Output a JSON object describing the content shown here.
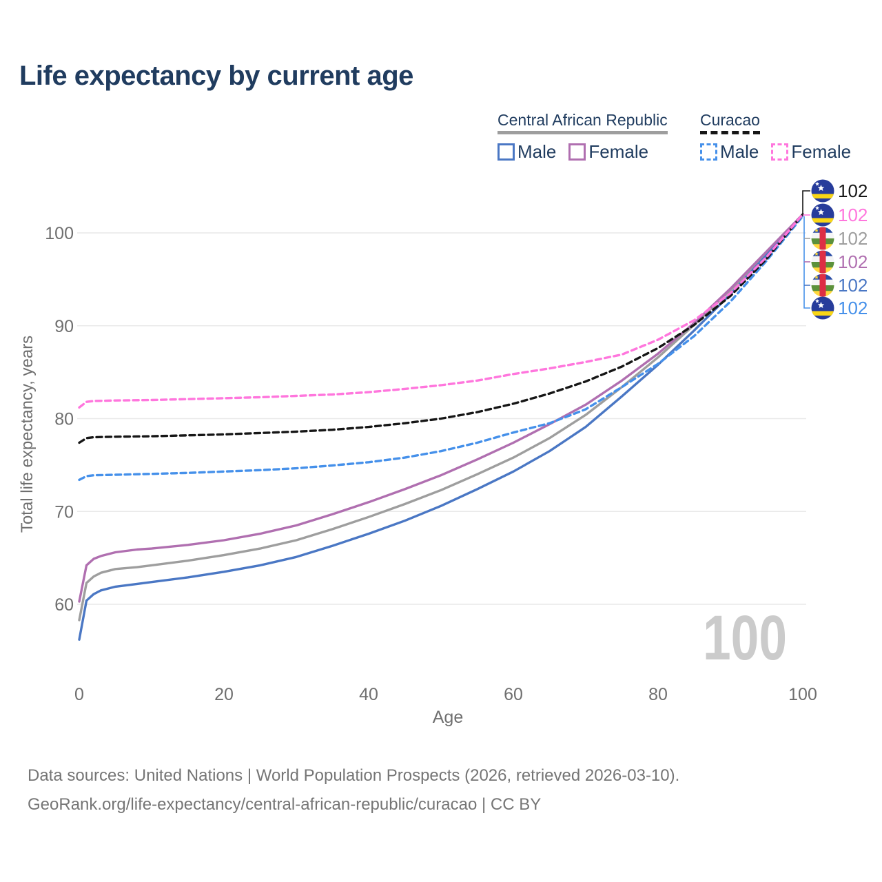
{
  "title": "Life expectancy by current age",
  "legend": {
    "groups": [
      {
        "name": "Central African Republic",
        "line_style": "solid",
        "line_color": "#9e9e9e",
        "items": [
          {
            "label": "Male",
            "color": "#4a77c4",
            "dashed": false
          },
          {
            "label": "Female",
            "color": "#b06fb0",
            "dashed": false
          }
        ]
      },
      {
        "name": "Curacao",
        "line_style": "dashed",
        "line_color": "#161616",
        "items": [
          {
            "label": "Male",
            "color": "#4590ea",
            "dashed": true
          },
          {
            "label": "Female",
            "color": "#ff76dd",
            "dashed": true
          }
        ]
      }
    ]
  },
  "chart_data": {
    "type": "line",
    "title": "Life expectancy by current age",
    "xlabel": "Age",
    "ylabel": "Total life expectancy, years",
    "x_axis": {
      "label": "Age",
      "ticks": [
        0,
        20,
        40,
        60,
        80,
        100
      ],
      "range": [
        0,
        100
      ]
    },
    "y_axis": {
      "label": "Total life expectancy, years",
      "ticks": [
        60,
        70,
        80,
        90,
        100
      ],
      "range": [
        56,
        103
      ]
    },
    "grid": "horizontal",
    "watermark": "100",
    "series": [
      {
        "id": "car-both",
        "name": "Central African Republic — Both sexes",
        "country": "Central African Republic",
        "sex": "Both",
        "color": "#9e9e9e",
        "dashed": false,
        "points": [
          [
            0,
            58.3
          ],
          [
            1,
            62.3
          ],
          [
            2,
            63.0
          ],
          [
            3,
            63.4
          ],
          [
            5,
            63.8
          ],
          [
            8,
            64.0
          ],
          [
            10,
            64.2
          ],
          [
            15,
            64.7
          ],
          [
            20,
            65.3
          ],
          [
            25,
            66.0
          ],
          [
            30,
            66.9
          ],
          [
            35,
            68.1
          ],
          [
            40,
            69.4
          ],
          [
            45,
            70.8
          ],
          [
            50,
            72.3
          ],
          [
            55,
            74.0
          ],
          [
            60,
            75.8
          ],
          [
            65,
            77.9
          ],
          [
            70,
            80.4
          ],
          [
            75,
            83.4
          ],
          [
            80,
            86.6
          ],
          [
            85,
            90.1
          ],
          [
            90,
            93.8
          ],
          [
            95,
            97.8
          ],
          [
            100,
            101.95
          ]
        ]
      },
      {
        "id": "car-male",
        "name": "Central African Republic — Male",
        "country": "Central African Republic",
        "sex": "Male",
        "color": "#4a77c4",
        "dashed": false,
        "points": [
          [
            0,
            56.2
          ],
          [
            1,
            60.4
          ],
          [
            2,
            61.1
          ],
          [
            3,
            61.5
          ],
          [
            5,
            61.9
          ],
          [
            8,
            62.2
          ],
          [
            10,
            62.4
          ],
          [
            15,
            62.9
          ],
          [
            20,
            63.5
          ],
          [
            25,
            64.2
          ],
          [
            30,
            65.1
          ],
          [
            35,
            66.3
          ],
          [
            40,
            67.6
          ],
          [
            45,
            69.0
          ],
          [
            50,
            70.6
          ],
          [
            55,
            72.4
          ],
          [
            60,
            74.3
          ],
          [
            65,
            76.5
          ],
          [
            70,
            79.1
          ],
          [
            75,
            82.4
          ],
          [
            80,
            85.8
          ],
          [
            85,
            89.5
          ],
          [
            90,
            93.4
          ],
          [
            95,
            97.6
          ],
          [
            100,
            101.9
          ]
        ]
      },
      {
        "id": "car-female",
        "name": "Central African Republic — Female",
        "country": "Central African Republic",
        "sex": "Female",
        "color": "#b06fb0",
        "dashed": false,
        "points": [
          [
            0,
            60.3
          ],
          [
            1,
            64.2
          ],
          [
            2,
            64.9
          ],
          [
            3,
            65.2
          ],
          [
            5,
            65.6
          ],
          [
            8,
            65.9
          ],
          [
            10,
            66.0
          ],
          [
            15,
            66.4
          ],
          [
            20,
            66.9
          ],
          [
            25,
            67.6
          ],
          [
            30,
            68.5
          ],
          [
            35,
            69.7
          ],
          [
            40,
            71.0
          ],
          [
            45,
            72.4
          ],
          [
            50,
            73.9
          ],
          [
            55,
            75.6
          ],
          [
            60,
            77.4
          ],
          [
            65,
            79.4
          ],
          [
            70,
            81.5
          ],
          [
            75,
            84.1
          ],
          [
            80,
            87.0
          ],
          [
            85,
            90.3
          ],
          [
            90,
            94.0
          ],
          [
            95,
            98.0
          ],
          [
            100,
            102
          ]
        ]
      },
      {
        "id": "cur-male",
        "name": "Curacao — Male",
        "country": "Curacao",
        "sex": "Male",
        "color": "#4590ea",
        "dashed": true,
        "points": [
          [
            0,
            73.4
          ],
          [
            1,
            73.8
          ],
          [
            2,
            73.9
          ],
          [
            5,
            73.95
          ],
          [
            10,
            74.05
          ],
          [
            15,
            74.15
          ],
          [
            20,
            74.3
          ],
          [
            25,
            74.45
          ],
          [
            30,
            74.65
          ],
          [
            35,
            74.95
          ],
          [
            40,
            75.3
          ],
          [
            45,
            75.8
          ],
          [
            50,
            76.5
          ],
          [
            55,
            77.4
          ],
          [
            60,
            78.5
          ],
          [
            65,
            79.5
          ],
          [
            70,
            81.0
          ],
          [
            75,
            83.4
          ],
          [
            80,
            85.9
          ],
          [
            85,
            88.9
          ],
          [
            90,
            92.6
          ],
          [
            95,
            97.0
          ],
          [
            100,
            101.8
          ]
        ]
      },
      {
        "id": "cur-both",
        "name": "Curacao — Both sexes",
        "country": "Curacao",
        "sex": "Both",
        "color": "#161616",
        "dashed": true,
        "points": [
          [
            0,
            77.4
          ],
          [
            1,
            77.9
          ],
          [
            2,
            78.0
          ],
          [
            5,
            78.05
          ],
          [
            10,
            78.1
          ],
          [
            15,
            78.2
          ],
          [
            20,
            78.3
          ],
          [
            25,
            78.45
          ],
          [
            30,
            78.6
          ],
          [
            35,
            78.8
          ],
          [
            40,
            79.1
          ],
          [
            45,
            79.5
          ],
          [
            50,
            80.0
          ],
          [
            55,
            80.7
          ],
          [
            60,
            81.6
          ],
          [
            65,
            82.7
          ],
          [
            70,
            84.0
          ],
          [
            75,
            85.6
          ],
          [
            80,
            87.6
          ],
          [
            85,
            90.1
          ],
          [
            90,
            93.2
          ],
          [
            95,
            97.2
          ],
          [
            100,
            102
          ]
        ]
      },
      {
        "id": "cur-female",
        "name": "Curacao — Female",
        "country": "Curacao",
        "sex": "Female",
        "color": "#ff76dd",
        "dashed": true,
        "points": [
          [
            0,
            81.2
          ],
          [
            1,
            81.8
          ],
          [
            2,
            81.9
          ],
          [
            5,
            81.95
          ],
          [
            10,
            82.0
          ],
          [
            15,
            82.1
          ],
          [
            20,
            82.2
          ],
          [
            25,
            82.3
          ],
          [
            30,
            82.45
          ],
          [
            35,
            82.6
          ],
          [
            40,
            82.85
          ],
          [
            45,
            83.2
          ],
          [
            50,
            83.6
          ],
          [
            55,
            84.1
          ],
          [
            60,
            84.8
          ],
          [
            65,
            85.4
          ],
          [
            70,
            86.1
          ],
          [
            75,
            86.9
          ],
          [
            80,
            88.5
          ],
          [
            85,
            90.6
          ],
          [
            90,
            93.5
          ],
          [
            95,
            97.4
          ],
          [
            100,
            102
          ]
        ]
      }
    ],
    "endpoints": [
      {
        "label": "102",
        "series": "Curacao — Both sexes",
        "flag": "curacao",
        "color": "#161616"
      },
      {
        "label": "102",
        "series": "Curacao — Female",
        "flag": "curacao",
        "color": "#ff76dd"
      },
      {
        "label": "102",
        "series": "Central African Republic — Both sexes",
        "flag": "car",
        "color": "#9e9e9e"
      },
      {
        "label": "102",
        "series": "Central African Republic — Female",
        "flag": "car",
        "color": "#b06fb0"
      },
      {
        "label": "102",
        "series": "Central African Republic — Male",
        "flag": "car",
        "color": "#4a77c4"
      },
      {
        "label": "102",
        "series": "Curacao — Male",
        "flag": "curacao",
        "color": "#4590ea"
      }
    ]
  },
  "footer": {
    "line1": "Data sources: United Nations | World Population Prospects (2026, retrieved 2026-03-10).",
    "line2": "GeoRank.org/life-expectancy/central-african-republic/curacao | CC BY"
  },
  "colors": {
    "title_text": "#203c5f",
    "axis_text": "#6f6f6f",
    "gridline": "#e9e9e9",
    "watermark": "#cbcbcb",
    "footer_text": "#757575"
  }
}
